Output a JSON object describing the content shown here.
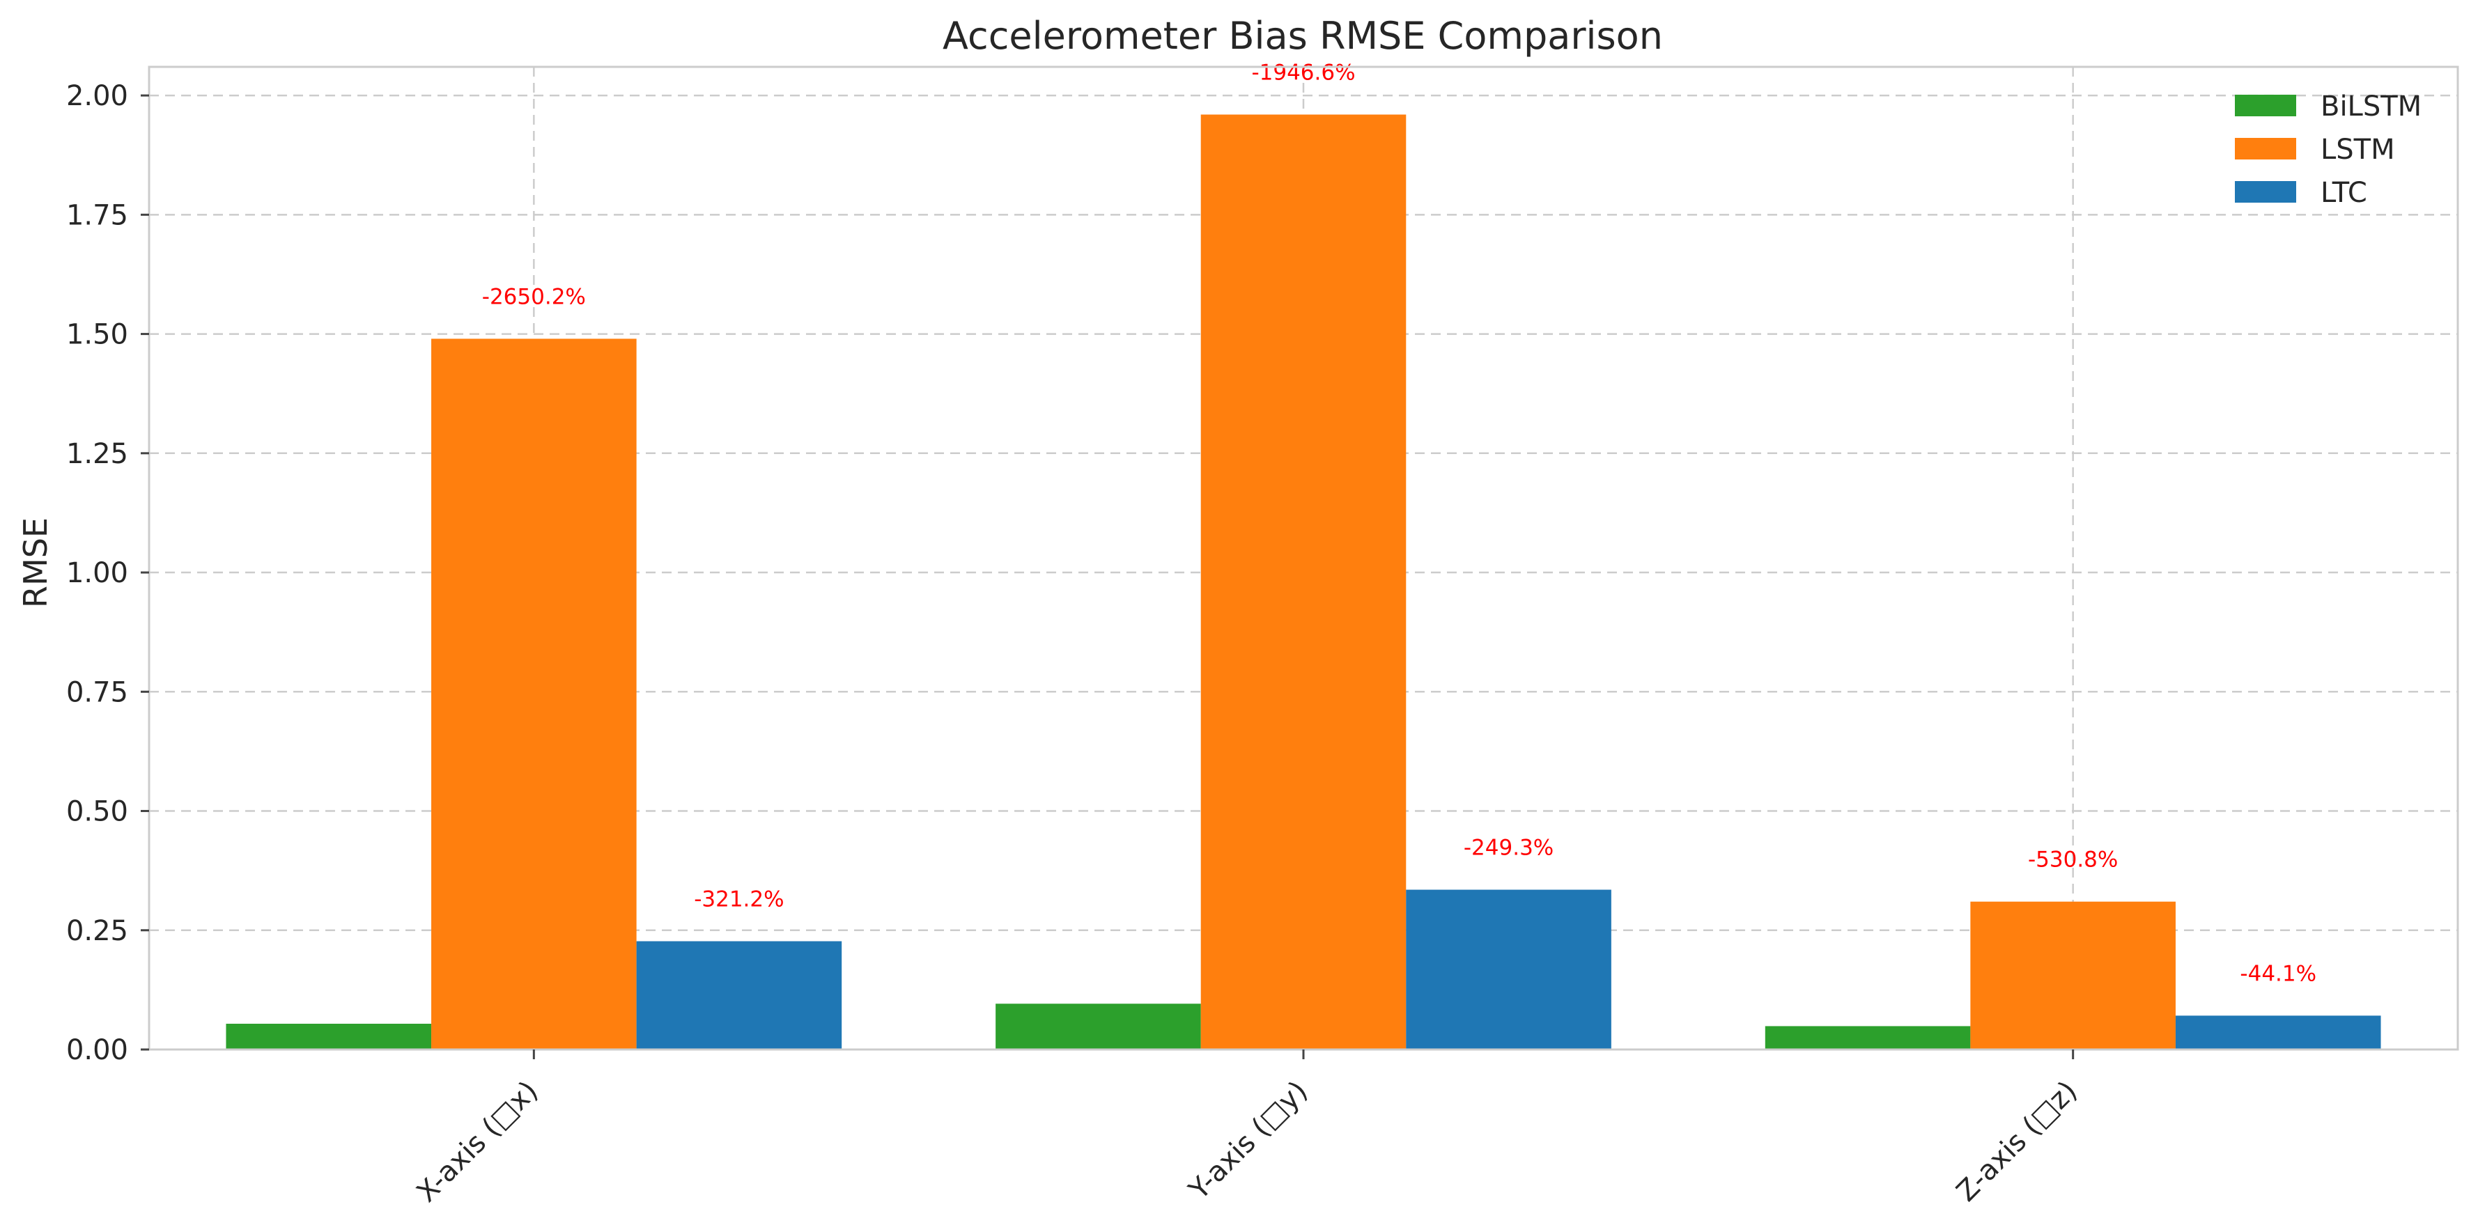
{
  "chart_data": {
    "type": "bar",
    "title": "Accelerometer Bias RMSE Comparison",
    "xlabel": "",
    "ylabel": "RMSE",
    "categories": [
      "X-axis (□x)",
      "Y-axis (□y)",
      "Z-axis (□z)"
    ],
    "series": [
      {
        "name": "BiLSTM",
        "color": "#2ca02c",
        "values": [
          0.054,
          0.096,
          0.049
        ]
      },
      {
        "name": "LSTM",
        "color": "#ff7f0e",
        "values": [
          1.49,
          1.96,
          0.31
        ],
        "labels": [
          "-2650.2%",
          "-1946.6%",
          "-530.8%"
        ]
      },
      {
        "name": "LTC",
        "color": "#1f77b4",
        "values": [
          0.227,
          0.335,
          0.071
        ],
        "labels": [
          "-321.2%",
          "-249.3%",
          "-44.1%"
        ]
      }
    ],
    "ylim": [
      0,
      2.06
    ],
    "yticks": [
      "0.00",
      "0.25",
      "0.50",
      "0.75",
      "1.00",
      "1.25",
      "1.50",
      "1.75",
      "2.00"
    ],
    "annotation_color": "#ff0000",
    "grid": true,
    "legend_position": "top-right"
  }
}
